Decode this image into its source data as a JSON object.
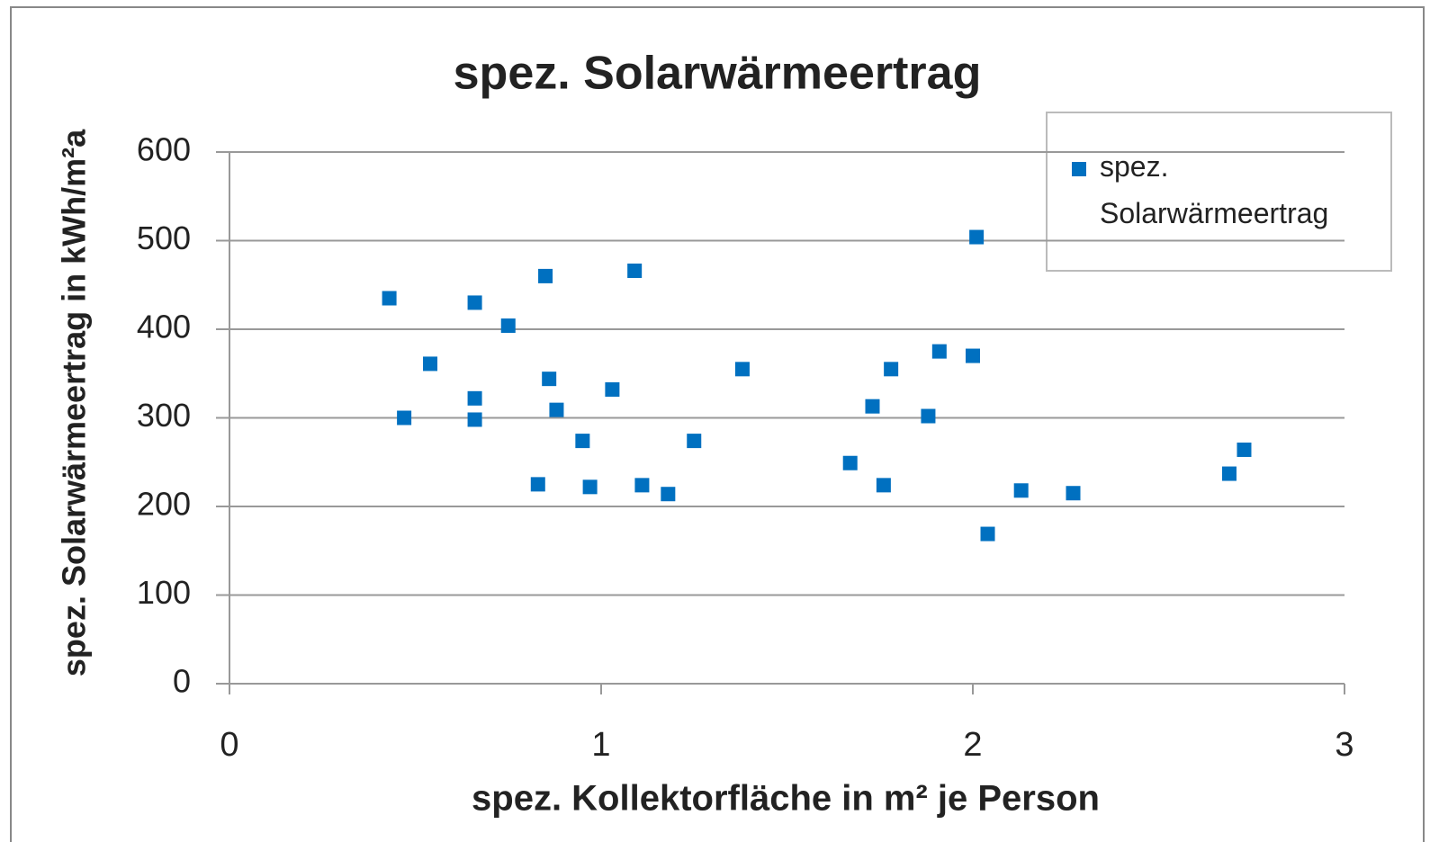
{
  "chart_data": {
    "type": "scatter",
    "title": "spez. Solarwärmeertrag",
    "x_label": "spez. Kollektorfläche in m² je Person",
    "y_label": "spez. Solarwärmeertrag in kWh/m²a",
    "series": [
      {
        "name": "spez. Solarwärmeertrag",
        "color": "#0070c0",
        "x": [
          0.43,
          0.47,
          0.54,
          0.66,
          0.66,
          0.66,
          0.75,
          0.83,
          0.85,
          0.86,
          0.88,
          0.95,
          0.97,
          1.03,
          1.09,
          1.11,
          1.18,
          1.25,
          1.38,
          1.67,
          1.73,
          1.76,
          1.78,
          1.88,
          1.91,
          2.0,
          2.01,
          2.04,
          2.13,
          2.27,
          2.69,
          2.73
        ],
        "values": [
          435,
          300,
          361,
          430,
          322,
          298,
          404,
          225,
          460,
          344,
          309,
          274,
          222,
          332,
          466,
          224,
          214,
          274,
          355,
          249,
          313,
          224,
          355,
          302,
          375,
          370,
          504,
          169,
          218,
          215,
          237,
          264
        ]
      }
    ],
    "xlim": [
      0,
      3
    ],
    "xticks": [
      0,
      1,
      2,
      3
    ],
    "ylim": [
      0,
      600
    ],
    "yticks": [
      0,
      100,
      200,
      300,
      400,
      500,
      600
    ],
    "grid": true,
    "legend": "upper right"
  }
}
